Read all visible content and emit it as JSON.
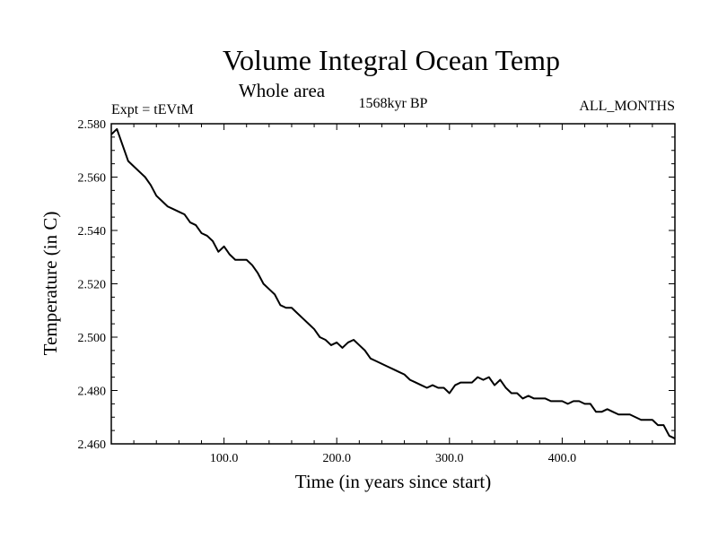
{
  "chart_data": {
    "type": "line",
    "title": "Volume Integral Ocean Temp",
    "subtitle": "Whole area",
    "left_label": "Expt = tEVtM",
    "center_label": "1568kyr BP",
    "right_label": "ALL_MONTHS",
    "xlabel": "Time (in years since start)",
    "ylabel": "Temperature (in C)",
    "xlim": [
      0,
      500
    ],
    "ylim": [
      2.46,
      2.58
    ],
    "x_ticks": [
      100,
      200,
      300,
      400
    ],
    "x_tick_labels": [
      "100.0",
      "200.0",
      "300.0",
      "400.0"
    ],
    "y_ticks": [
      2.46,
      2.48,
      2.5,
      2.52,
      2.54,
      2.56,
      2.58
    ],
    "y_tick_labels": [
      "2.460",
      "2.480",
      "2.500",
      "2.520",
      "2.540",
      "2.560",
      "2.580"
    ],
    "grid": false,
    "series": [
      {
        "name": "Volume Integral Ocean Temp",
        "color": "#000000",
        "x": [
          0,
          5,
          10,
          15,
          20,
          25,
          30,
          35,
          40,
          45,
          50,
          55,
          60,
          65,
          70,
          75,
          80,
          85,
          90,
          95,
          100,
          105,
          110,
          115,
          120,
          125,
          130,
          135,
          140,
          145,
          150,
          155,
          160,
          165,
          170,
          175,
          180,
          185,
          190,
          195,
          200,
          205,
          210,
          215,
          220,
          225,
          230,
          235,
          240,
          245,
          250,
          255,
          260,
          265,
          270,
          275,
          280,
          285,
          290,
          295,
          300,
          305,
          310,
          315,
          320,
          325,
          330,
          335,
          340,
          345,
          350,
          355,
          360,
          365,
          370,
          375,
          380,
          385,
          390,
          395,
          400,
          405,
          410,
          415,
          420,
          425,
          430,
          435,
          440,
          445,
          450,
          455,
          460,
          465,
          470,
          475,
          480,
          485,
          490,
          495,
          500
        ],
        "y": [
          2.576,
          2.578,
          2.572,
          2.566,
          2.564,
          2.562,
          2.56,
          2.557,
          2.553,
          2.551,
          2.549,
          2.548,
          2.547,
          2.546,
          2.543,
          2.542,
          2.539,
          2.538,
          2.536,
          2.532,
          2.534,
          2.531,
          2.529,
          2.529,
          2.529,
          2.527,
          2.524,
          2.52,
          2.518,
          2.516,
          2.512,
          2.511,
          2.511,
          2.509,
          2.507,
          2.505,
          2.503,
          2.5,
          2.499,
          2.497,
          2.498,
          2.496,
          2.498,
          2.499,
          2.497,
          2.495,
          2.492,
          2.491,
          2.49,
          2.489,
          2.488,
          2.487,
          2.486,
          2.484,
          2.483,
          2.482,
          2.481,
          2.482,
          2.481,
          2.481,
          2.479,
          2.482,
          2.483,
          2.483,
          2.483,
          2.485,
          2.484,
          2.485,
          2.482,
          2.484,
          2.481,
          2.479,
          2.479,
          2.477,
          2.478,
          2.477,
          2.477,
          2.477,
          2.476,
          2.476,
          2.476,
          2.475,
          2.476,
          2.476,
          2.475,
          2.475,
          2.472,
          2.472,
          2.473,
          2.472,
          2.471,
          2.471,
          2.471,
          2.47,
          2.469,
          2.469,
          2.469,
          2.467,
          2.467,
          2.463,
          2.462
        ]
      }
    ]
  }
}
